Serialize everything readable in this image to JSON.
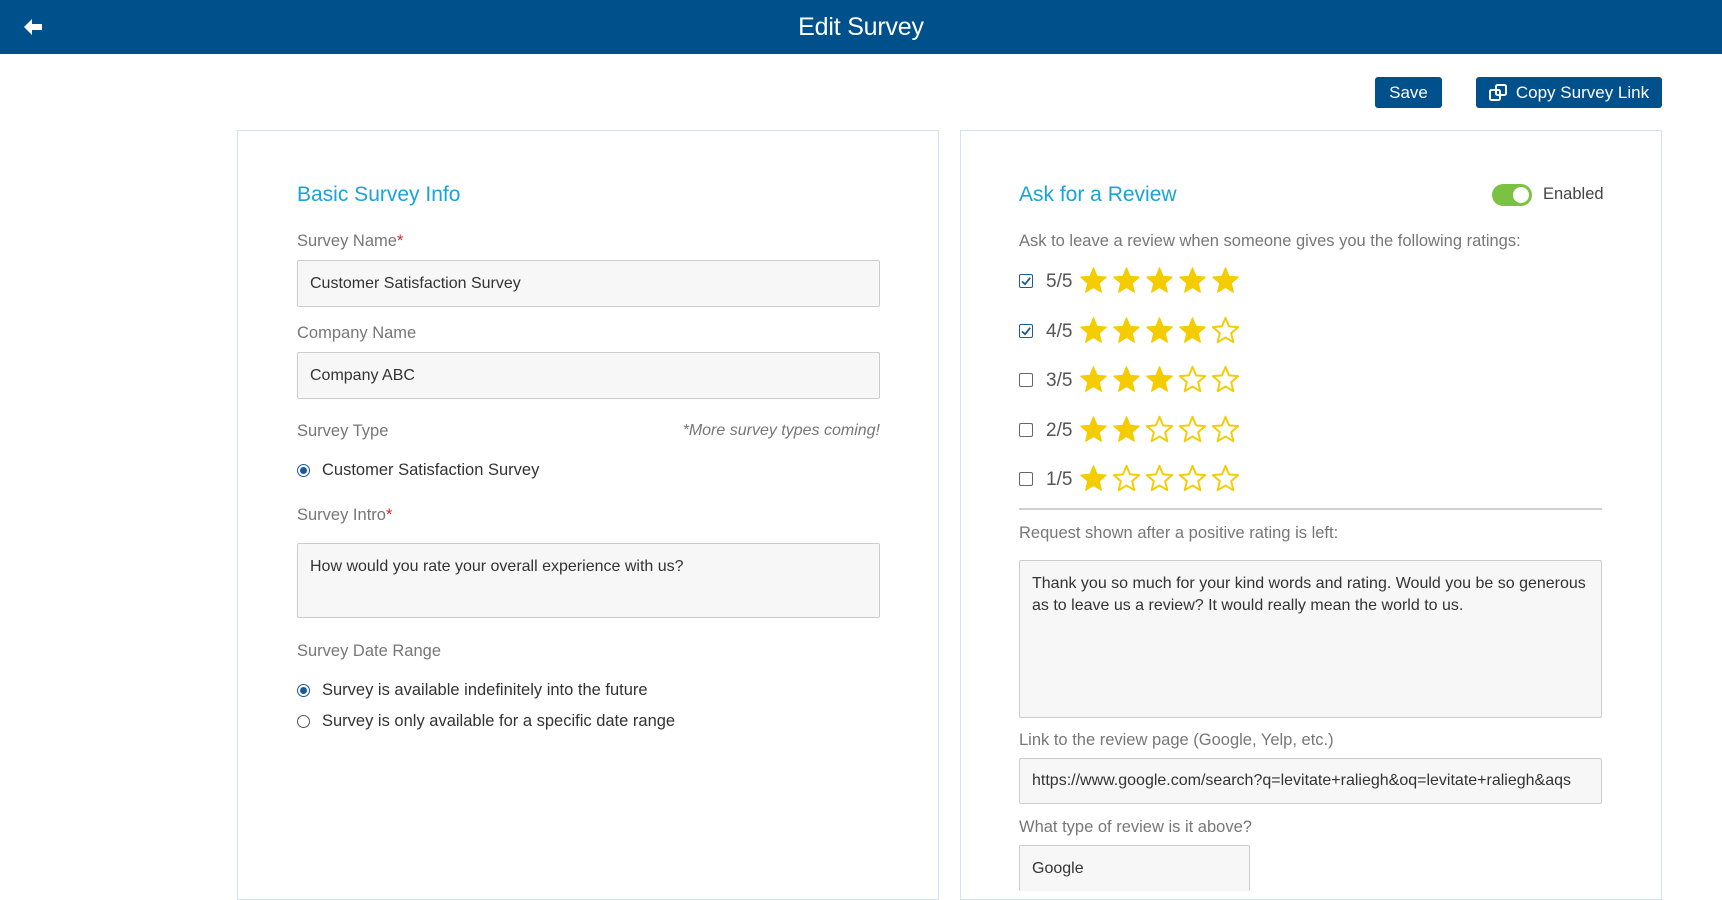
{
  "header": {
    "title": "Edit Survey"
  },
  "toolbar": {
    "save_label": "Save",
    "copy_link_label": "Copy Survey Link"
  },
  "basic_info": {
    "title": "Basic Survey Info",
    "survey_name_label": "Survey Name",
    "survey_name_value": "Customer Satisfaction Survey",
    "company_name_label": "Company Name",
    "company_name_value": "Company ABC",
    "survey_type_label": "Survey Type",
    "survey_type_note": "*More survey types coming!",
    "survey_type_option": "Customer Satisfaction Survey",
    "survey_intro_label": "Survey Intro",
    "survey_intro_value": "How would you rate your overall experience with us?",
    "date_range_label": "Survey Date Range",
    "date_option_indefinite": "Survey is available indefinitely into the future",
    "date_option_specific": "Survey is only available for a specific date range",
    "required_mark": "*"
  },
  "review": {
    "title": "Ask for a Review",
    "enabled_label": "Enabled",
    "enabled": true,
    "ratings_prompt": "Ask to leave a review when someone gives you the following ratings:",
    "ratings": [
      {
        "label": "5/5",
        "stars": 5,
        "checked": true
      },
      {
        "label": "4/5",
        "stars": 4,
        "checked": true
      },
      {
        "label": "3/5",
        "stars": 3,
        "checked": false
      },
      {
        "label": "2/5",
        "stars": 2,
        "checked": false
      },
      {
        "label": "1/5",
        "stars": 1,
        "checked": false
      }
    ],
    "request_label": "Request shown after a positive rating is left:",
    "request_value": "Thank you so much for your kind words and rating. Would you be so generous as to leave us a review? It would really mean the world to us.",
    "link_label": "Link to the review page (Google, Yelp, etc.)",
    "link_value": "https://www.google.com/search?q=levitate+raliegh&oq=levitate+raliegh&aqs",
    "type_label": "What type of review is it above?",
    "type_value": "Google"
  },
  "colors": {
    "header_bg": "#00508c",
    "accent_title": "#1aa3d9",
    "star": "#f5cc00",
    "toggle_on": "#7cc242"
  }
}
